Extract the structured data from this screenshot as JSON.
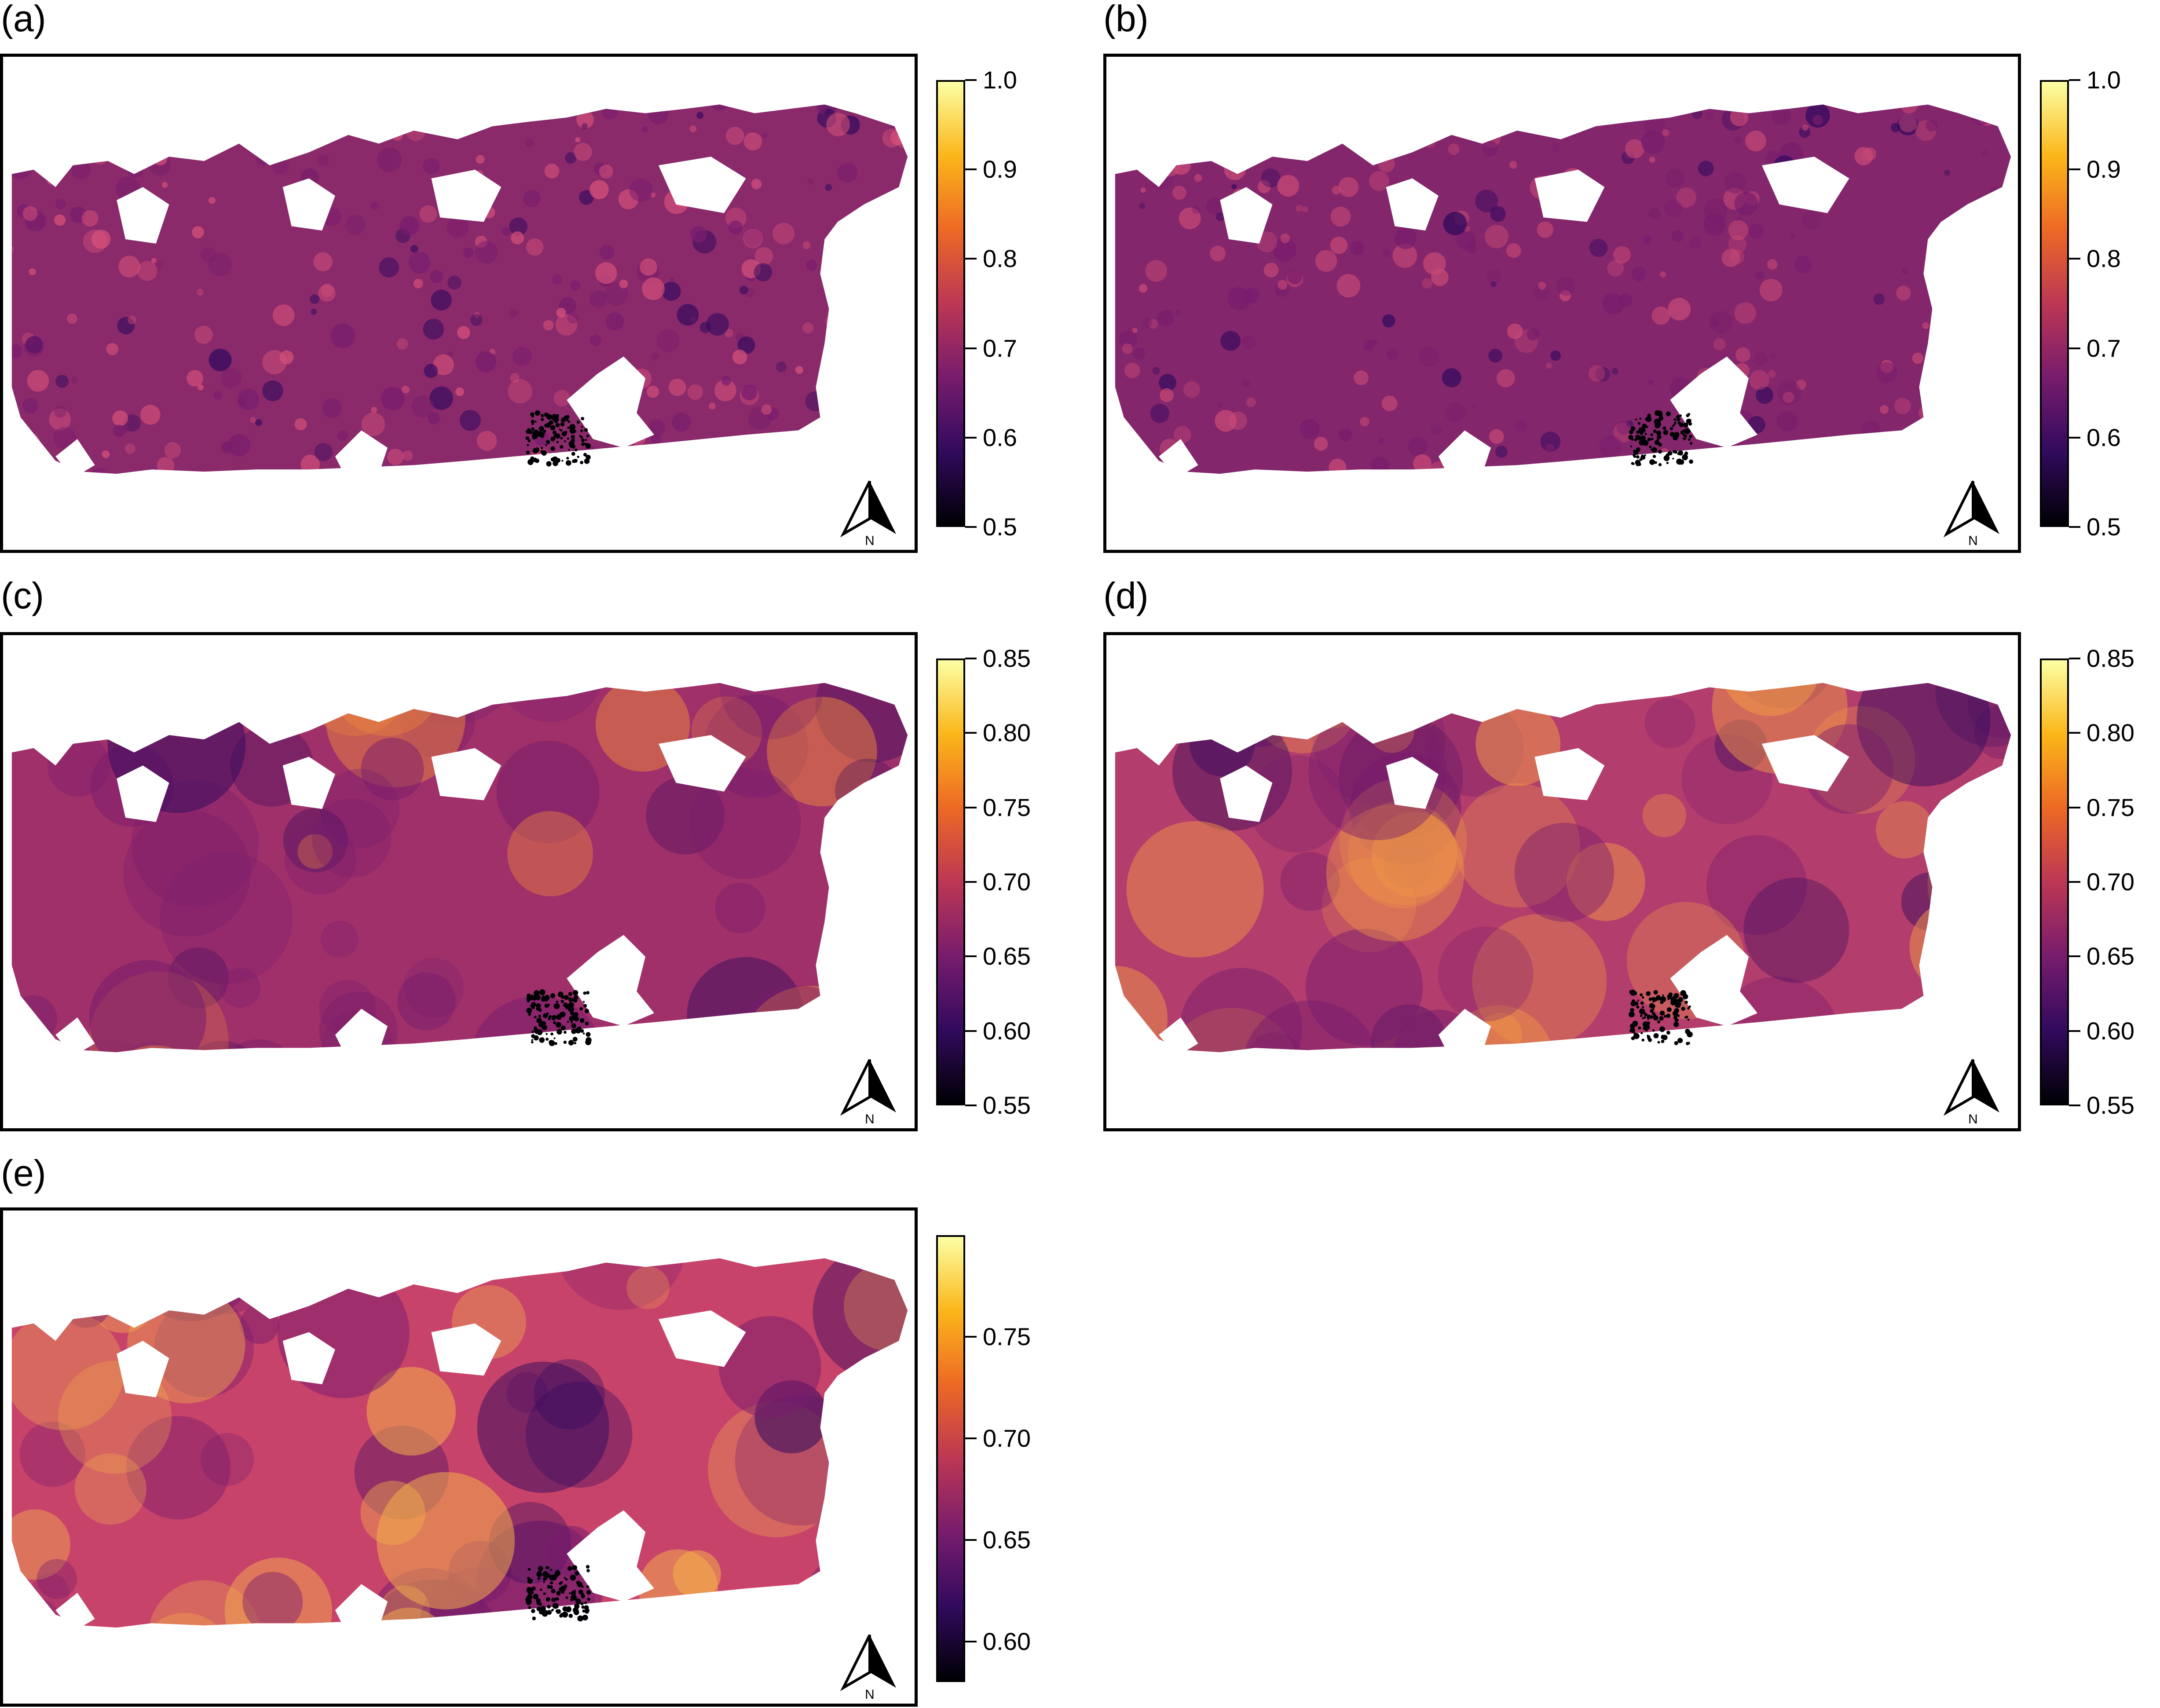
{
  "figure": {
    "palette": [
      "#000004",
      "#320a5e",
      "#781c6d",
      "#bc3754",
      "#ed6925",
      "#fbb61a",
      "#fcffa4"
    ],
    "panels": [
      {
        "id": "a",
        "label": "(a)",
        "base_color": "#8a2a6a",
        "accent_color": "#d8527a",
        "colorbar": {
          "min": 0.5,
          "max": 1.0,
          "ticks": [
            "1.0",
            "0.9",
            "0.8",
            "0.7",
            "0.6",
            "0.5"
          ],
          "tick_values": [
            1.0,
            0.9,
            0.8,
            0.7,
            0.6,
            0.5
          ]
        },
        "north_label": "N"
      },
      {
        "id": "b",
        "label": "(b)",
        "base_color": "#84266b",
        "accent_color": "#c94a76",
        "colorbar": {
          "min": 0.5,
          "max": 1.0,
          "ticks": [
            "1.0",
            "0.9",
            "0.8",
            "0.7",
            "0.6",
            "0.5"
          ],
          "tick_values": [
            1.0,
            0.9,
            0.8,
            0.7,
            0.6,
            0.5
          ]
        },
        "north_label": "N"
      },
      {
        "id": "c",
        "label": "(c)",
        "base_color": "#a0306a",
        "accent_color": "#f08a3a",
        "colorbar": {
          "min": 0.55,
          "max": 0.85,
          "ticks": [
            "0.85",
            "0.80",
            "0.75",
            "0.70",
            "0.65",
            "0.60",
            "0.55"
          ],
          "tick_values": [
            0.85,
            0.8,
            0.75,
            0.7,
            0.65,
            0.6,
            0.55
          ]
        },
        "north_label": "N"
      },
      {
        "id": "d",
        "label": "(d)",
        "base_color": "#b33d6c",
        "accent_color": "#f39a45",
        "colorbar": {
          "min": 0.55,
          "max": 0.85,
          "ticks": [
            "0.85",
            "0.80",
            "0.75",
            "0.70",
            "0.65",
            "0.60",
            "0.55"
          ],
          "tick_values": [
            0.85,
            0.8,
            0.75,
            0.7,
            0.65,
            0.6,
            0.55
          ]
        },
        "north_label": "N"
      },
      {
        "id": "e",
        "label": "(e)",
        "base_color": "#c8436a",
        "accent_color": "#f6b24a",
        "colorbar": {
          "min": 0.58,
          "max": 0.8,
          "ticks": [
            "0.75",
            "0.70",
            "0.65",
            "0.60"
          ],
          "tick_values": [
            0.75,
            0.7,
            0.65,
            0.6
          ]
        },
        "north_label": "N"
      }
    ]
  }
}
